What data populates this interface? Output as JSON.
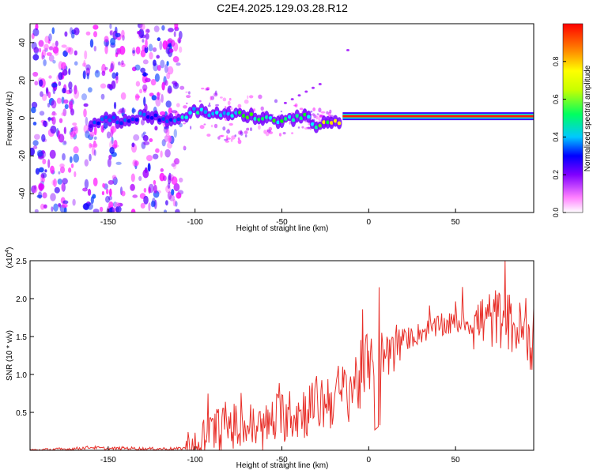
{
  "title": "C2E4.2025.129.03.28.R12",
  "colors": {
    "snr_line": "#e8302a",
    "spectrogram_low": "#8a2be2",
    "spectrogram_high": "#e0002a"
  },
  "chart_data": [
    {
      "type": "heatmap",
      "xlabel": "Height of straight line (km)",
      "ylabel": "Frequency (Hz)",
      "xlim": [
        -195,
        95
      ],
      "ylim": [
        -50,
        50
      ],
      "x_ticks": [
        -150,
        -100,
        -50,
        0,
        50
      ],
      "y_ticks": [
        -40,
        -20,
        0,
        20,
        40
      ],
      "grid": false,
      "colorbar": {
        "label": "Normalized spectral amplitude",
        "range": [
          0.0,
          1.0
        ],
        "ticks": [
          "0.0",
          "0.2",
          "0.4",
          "0.6",
          "0.8"
        ],
        "colormap": [
          "#ffffff",
          "#ff00ff",
          "#0000ff",
          "#00ffff",
          "#00ff00",
          "#ffff00",
          "#ff8000",
          "#ff0000"
        ]
      },
      "signal_track": {
        "x": [
          -160,
          -150,
          -140,
          -130,
          -120,
          -110,
          -100,
          -90,
          -80,
          -70,
          -60,
          -50,
          -40,
          -35,
          -30,
          -25,
          -20,
          -15,
          -10,
          0,
          10,
          20,
          40,
          60,
          80,
          95
        ],
        "y": [
          -3,
          0,
          -2,
          2,
          0,
          -1,
          4,
          2,
          3,
          1,
          0,
          -2,
          1,
          0,
          -4,
          -3,
          -2,
          -1,
          0,
          0,
          0,
          1,
          1,
          1,
          1,
          1
        ],
        "amplitude": [
          0.3,
          0.35,
          0.35,
          0.35,
          0.35,
          0.4,
          0.45,
          0.5,
          0.5,
          0.55,
          0.55,
          0.55,
          0.55,
          0.5,
          0.6,
          0.7,
          0.75,
          0.8,
          0.85,
          0.95,
          0.95,
          0.95,
          0.95,
          0.95,
          0.95,
          0.95
        ]
      }
    },
    {
      "type": "line",
      "xlabel": "Height of straight line (km)",
      "ylabel": "SNR (10 * v/v)",
      "y_multiplier": "(x10",
      "y_multiplier_exp": "4",
      "y_multiplier_close": ")",
      "xlim": [
        -195,
        95
      ],
      "ylim": [
        0,
        2.5
      ],
      "x_ticks": [
        -150,
        -100,
        -50,
        0,
        50
      ],
      "y_ticks": [
        0.5,
        1.0,
        1.5,
        2.0,
        2.5
      ],
      "grid": false,
      "series": [
        {
          "x": [
            -195,
            -170,
            -160,
            -150,
            -140,
            -130,
            -120,
            -110,
            -100,
            -95,
            -90,
            -85,
            -80,
            -75,
            -70,
            -65,
            -60,
            -55,
            -50,
            -45,
            -40,
            -35,
            -30,
            -25,
            -20,
            -15,
            -10,
            -5,
            0,
            5,
            10,
            15,
            20,
            25,
            30,
            35,
            40,
            45,
            50,
            55,
            60,
            65,
            70,
            75,
            80,
            85,
            90,
            95
          ],
          "y": [
            0.0,
            0.02,
            0.04,
            0.02,
            0.03,
            0.02,
            0.02,
            0.02,
            0.05,
            0.15,
            0.22,
            0.3,
            0.35,
            0.28,
            0.32,
            0.3,
            0.28,
            0.4,
            0.45,
            0.5,
            0.48,
            0.55,
            0.6,
            0.65,
            0.7,
            0.75,
            0.85,
            0.95,
            1.1,
            1.2,
            1.3,
            1.35,
            1.45,
            1.5,
            1.55,
            1.6,
            1.62,
            1.65,
            1.68,
            1.7,
            1.65,
            1.7,
            1.72,
            1.75,
            1.7,
            1.6,
            1.55,
            1.4
          ]
        }
      ]
    }
  ]
}
